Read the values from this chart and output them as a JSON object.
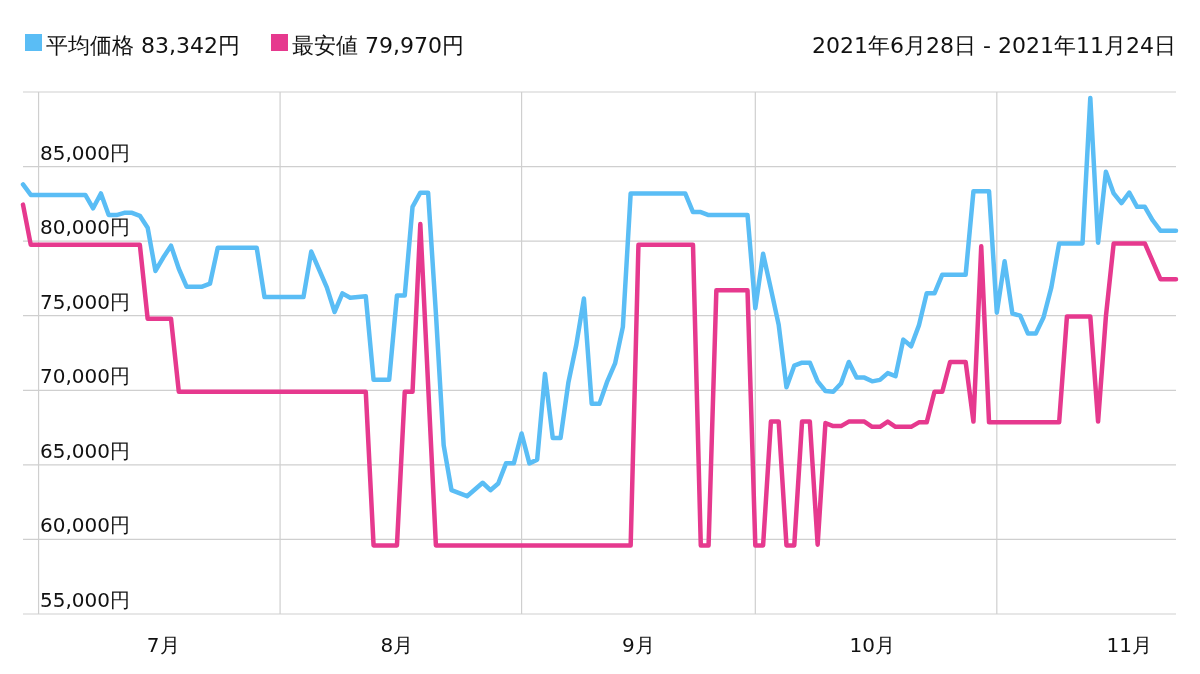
{
  "chart_data": {
    "type": "line",
    "subtitle": "2021年6月28日 - 2021年11月24日",
    "legend": "top left",
    "grid": true,
    "line_style": "solid",
    "xlim": [
      "2021-06-29",
      "2021-11-24"
    ],
    "xticks": [
      {
        "value": "2021-07-01",
        "label": null
      },
      {
        "value": "2021-07-17",
        "label": "7月"
      },
      {
        "value": "2021-08-01",
        "label": null
      },
      {
        "value": "2021-08-16",
        "label": "8月"
      },
      {
        "value": "2021-09-01",
        "label": null
      },
      {
        "value": "2021-09-16",
        "label": "9月"
      },
      {
        "value": "2021-10-01",
        "label": null
      },
      {
        "value": "2021-10-16",
        "label": "10月"
      },
      {
        "value": "2021-11-01",
        "label": null
      },
      {
        "value": "2021-11-18",
        "label": "11月"
      }
    ],
    "ylim": [
      55000,
      90000
    ],
    "yticks": [
      {
        "value": 55000,
        "label": "55,000円"
      },
      {
        "value": 60000,
        "label": "60,000円"
      },
      {
        "value": 65000,
        "label": "65,000円"
      },
      {
        "value": 70000,
        "label": "70,000円"
      },
      {
        "value": 75000,
        "label": "75,000円"
      },
      {
        "value": 80000,
        "label": "80,000円"
      },
      {
        "value": 85000,
        "label": "85,000円"
      },
      {
        "value": 90000,
        "label": null
      }
    ],
    "series": [
      {
        "name": "平均価格 83,342円",
        "color": "#5abdf5",
        "x": [
          "2021-06-29",
          "2021-06-30",
          "2021-07-07",
          "2021-07-08",
          "2021-07-09",
          "2021-07-10",
          "2021-07-11",
          "2021-07-12",
          "2021-07-13",
          "2021-07-14",
          "2021-07-15",
          "2021-07-16",
          "2021-07-17",
          "2021-07-18",
          "2021-07-19",
          "2021-07-20",
          "2021-07-22",
          "2021-07-23",
          "2021-07-24",
          "2021-07-29",
          "2021-07-30",
          "2021-08-04",
          "2021-08-05",
          "2021-08-07",
          "2021-08-08",
          "2021-08-09",
          "2021-08-10",
          "2021-08-12",
          "2021-08-13",
          "2021-08-15",
          "2021-08-16",
          "2021-08-17",
          "2021-08-18",
          "2021-08-19",
          "2021-08-20",
          "2021-08-21",
          "2021-08-22",
          "2021-08-23",
          "2021-08-25",
          "2021-08-26",
          "2021-08-27",
          "2021-08-28",
          "2021-08-29",
          "2021-08-30",
          "2021-08-31",
          "2021-09-01",
          "2021-09-02",
          "2021-09-03",
          "2021-09-04",
          "2021-09-05",
          "2021-09-06",
          "2021-09-07",
          "2021-09-08",
          "2021-09-09",
          "2021-09-10",
          "2021-09-11",
          "2021-09-12",
          "2021-09-13",
          "2021-09-14",
          "2021-09-15",
          "2021-09-22",
          "2021-09-23",
          "2021-09-24",
          "2021-09-25",
          "2021-09-30",
          "2021-10-01",
          "2021-10-02",
          "2021-10-03",
          "2021-10-04",
          "2021-10-05",
          "2021-10-06",
          "2021-10-07",
          "2021-10-08",
          "2021-10-09",
          "2021-10-10",
          "2021-10-11",
          "2021-10-12",
          "2021-10-13",
          "2021-10-14",
          "2021-10-15",
          "2021-10-16",
          "2021-10-17",
          "2021-10-18",
          "2021-10-19",
          "2021-10-20",
          "2021-10-21",
          "2021-10-22",
          "2021-10-23",
          "2021-10-24",
          "2021-10-25",
          "2021-10-28",
          "2021-10-29",
          "2021-10-31",
          "2021-11-01",
          "2021-11-02",
          "2021-11-03",
          "2021-11-04",
          "2021-11-05",
          "2021-11-06",
          "2021-11-07",
          "2021-11-08",
          "2021-11-09",
          "2021-11-12",
          "2021-11-13",
          "2021-11-14",
          "2021-11-15",
          "2021-11-16",
          "2021-11-17",
          "2021-11-18",
          "2021-11-19",
          "2021-11-20",
          "2021-11-21",
          "2021-11-22",
          "2021-11-24"
        ],
        "values": [
          83800,
          83100,
          83100,
          82200,
          83200,
          81750,
          81750,
          81900,
          81900,
          81700,
          80900,
          78000,
          78900,
          79700,
          78150,
          76950,
          76950,
          77150,
          79550,
          79550,
          76250,
          76250,
          79300,
          76900,
          75250,
          76500,
          76200,
          76300,
          70700,
          70700,
          76350,
          76350,
          82300,
          83250,
          83250,
          75150,
          66300,
          63300,
          62900,
          63350,
          63800,
          63300,
          63750,
          65100,
          65100,
          67100,
          65100,
          65350,
          71100,
          66800,
          66800,
          70500,
          73000,
          76150,
          69100,
          69100,
          70600,
          71800,
          74250,
          83200,
          83200,
          81950,
          81950,
          81750,
          81750,
          75500,
          79150,
          76800,
          74400,
          70200,
          71650,
          71850,
          71850,
          70600,
          69950,
          69900,
          70450,
          71900,
          70850,
          70850,
          70600,
          70700,
          71150,
          70950,
          73400,
          72950,
          74350,
          76500,
          76500,
          77750,
          77750,
          83350,
          83350,
          75200,
          78650,
          75150,
          75000,
          73800,
          73800,
          74900,
          76900,
          79850,
          79850,
          89600,
          79900,
          84650,
          83200,
          82550,
          83250,
          82300,
          82300,
          81400,
          80700,
          80700
        ]
      },
      {
        "name": "最安値 79,970円",
        "color": "#e6398e",
        "x": [
          "2021-06-29",
          "2021-06-30",
          "2021-07-14",
          "2021-07-15",
          "2021-07-18",
          "2021-07-19",
          "2021-08-12",
          "2021-08-13",
          "2021-08-16",
          "2021-08-17",
          "2021-08-18",
          "2021-08-19",
          "2021-08-21",
          "2021-09-15",
          "2021-09-16",
          "2021-09-23",
          "2021-09-24",
          "2021-09-25",
          "2021-09-26",
          "2021-09-30",
          "2021-10-01",
          "2021-10-02",
          "2021-10-03",
          "2021-10-04",
          "2021-10-05",
          "2021-10-06",
          "2021-10-07",
          "2021-10-08",
          "2021-10-09",
          "2021-10-10",
          "2021-10-11",
          "2021-10-12",
          "2021-10-13",
          "2021-10-15",
          "2021-10-16",
          "2021-10-17",
          "2021-10-18",
          "2021-10-19",
          "2021-10-21",
          "2021-10-22",
          "2021-10-23",
          "2021-10-24",
          "2021-10-25",
          "2021-10-26",
          "2021-10-28",
          "2021-10-29",
          "2021-10-30",
          "2021-10-31",
          "2021-11-09",
          "2021-11-10",
          "2021-11-13",
          "2021-11-14",
          "2021-11-15",
          "2021-11-16",
          "2021-11-20",
          "2021-11-22",
          "2021-11-24"
        ],
        "values": [
          82450,
          79750,
          79750,
          74800,
          74800,
          69900,
          69900,
          59600,
          59600,
          69900,
          69900,
          81150,
          59600,
          59600,
          79750,
          79750,
          59600,
          59600,
          76700,
          76700,
          59600,
          59600,
          67900,
          67900,
          59600,
          59600,
          67900,
          67900,
          59650,
          67800,
          67600,
          67600,
          67900,
          67900,
          67550,
          67550,
          67900,
          67550,
          67550,
          67850,
          67850,
          69900,
          69900,
          71900,
          71900,
          67900,
          79650,
          67850,
          67850,
          74950,
          74950,
          67900,
          74950,
          79850,
          79850,
          77450,
          77450
        ]
      }
    ]
  }
}
